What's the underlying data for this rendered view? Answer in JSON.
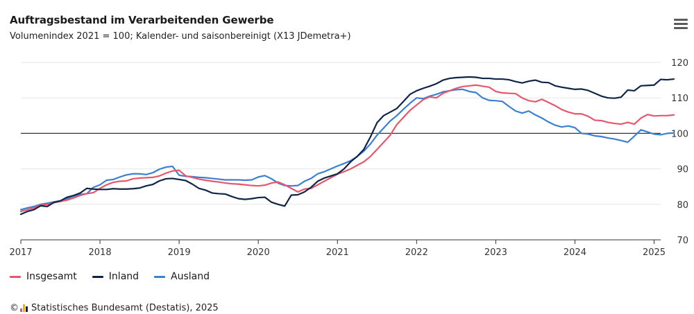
{
  "header": {
    "title": "Auftragsbestand im Verarbeitenden Gewerbe",
    "subtitle": "Volumenindex 2021 = 100; Kalender- und saisonbereinigt (X13 JDemetra+)",
    "menu_icon": "hamburger-menu-icon"
  },
  "legend": [
    {
      "name": "Insgesamt",
      "color": "#e8566c"
    },
    {
      "name": "Inland",
      "color": "#0f2548"
    },
    {
      "name": "Ausland",
      "color": "#3a80d2"
    }
  ],
  "credits": {
    "prefix": "©",
    "logo_icon": "destatis-logo-icon",
    "text": "Statistisches Bundesamt (Destatis), 2025"
  },
  "chart_data": {
    "type": "line",
    "x_start": "2017-01",
    "x_end": "2025-02",
    "x_ticks": [
      "2017",
      "2018",
      "2019",
      "2020",
      "2021",
      "2022",
      "2023",
      "2024",
      "2025"
    ],
    "y_ticks": [
      70,
      80,
      90,
      100,
      110,
      120
    ],
    "ylim": [
      70,
      120
    ],
    "reference_line": 100,
    "y_axis_position": "right",
    "grid": true,
    "legend_position": "bottom-left",
    "series": [
      {
        "name": "Insgesamt",
        "color": "#e8566c",
        "values": [
          78.0,
          78.5,
          79.0,
          79.8,
          80.0,
          80.5,
          80.8,
          81.2,
          81.8,
          82.5,
          83.0,
          83.3,
          84.5,
          85.5,
          86.2,
          86.5,
          86.6,
          87.2,
          87.4,
          87.5,
          87.6,
          88.0,
          88.8,
          89.4,
          89.6,
          88.0,
          87.6,
          87.1,
          86.8,
          86.5,
          86.3,
          86.0,
          85.8,
          85.7,
          85.5,
          85.3,
          85.2,
          85.4,
          86.0,
          86.3,
          85.5,
          84.5,
          83.5,
          84.3,
          84.5,
          85.5,
          86.5,
          87.5,
          88.5,
          89.2,
          90.0,
          91.0,
          92.0,
          93.5,
          95.5,
          97.5,
          99.5,
          102.5,
          104.5,
          106.5,
          108.0,
          109.5,
          110.3,
          110.0,
          111.3,
          112.0,
          112.7,
          113.2,
          113.4,
          113.6,
          113.3,
          113.0,
          111.8,
          111.4,
          111.3,
          111.2,
          110.0,
          109.2,
          108.9,
          109.6,
          108.7,
          107.8,
          106.7,
          106.0,
          105.5,
          105.5,
          104.8,
          103.7,
          103.6,
          103.1,
          102.8,
          102.6,
          103.1,
          102.6,
          104.3,
          105.3,
          104.9,
          105.0,
          105.0,
          105.2
        ]
      },
      {
        "name": "Inland",
        "color": "#0f2548",
        "values": [
          77.2,
          78.0,
          78.5,
          79.6,
          79.4,
          80.5,
          81.0,
          82.0,
          82.5,
          83.2,
          84.5,
          84.3,
          84.2,
          84.2,
          84.4,
          84.3,
          84.3,
          84.4,
          84.6,
          85.2,
          85.6,
          86.6,
          87.2,
          87.3,
          87.0,
          86.7,
          85.7,
          84.5,
          84.0,
          83.2,
          83.0,
          82.9,
          82.2,
          81.6,
          81.4,
          81.6,
          81.9,
          82.0,
          80.6,
          80.0,
          79.5,
          82.6,
          82.7,
          83.5,
          84.8,
          86.5,
          87.4,
          88.0,
          88.6,
          90.0,
          92.0,
          93.5,
          95.5,
          99.0,
          103.0,
          105.0,
          106.0,
          107.0,
          109.0,
          111.0,
          112.0,
          112.7,
          113.3,
          114.0,
          115.0,
          115.5,
          115.7,
          115.8,
          115.9,
          115.8,
          115.5,
          115.5,
          115.3,
          115.3,
          115.1,
          114.6,
          114.2,
          114.7,
          115.0,
          114.4,
          114.3,
          113.4,
          113.0,
          112.7,
          112.4,
          112.5,
          112.1,
          111.3,
          110.5,
          110.0,
          109.9,
          110.2,
          112.2,
          112.0,
          113.4,
          113.5,
          113.6,
          115.2,
          115.1,
          115.3
        ]
      },
      {
        "name": "Ausland",
        "color": "#3a80d2",
        "values": [
          78.5,
          79.0,
          79.4,
          80.0,
          80.3,
          80.7,
          81.0,
          81.6,
          82.3,
          82.8,
          83.0,
          84.8,
          85.5,
          86.8,
          87.0,
          87.7,
          88.3,
          88.6,
          88.6,
          88.4,
          88.9,
          89.9,
          90.5,
          90.7,
          88.2,
          87.9,
          87.8,
          87.6,
          87.5,
          87.3,
          87.1,
          86.9,
          86.9,
          86.9,
          86.8,
          86.9,
          87.7,
          88.1,
          87.2,
          86.0,
          85.3,
          85.2,
          85.3,
          86.5,
          87.3,
          88.6,
          89.2,
          90.0,
          90.8,
          91.5,
          92.3,
          93.5,
          95.0,
          97.0,
          99.5,
          101.5,
          103.5,
          105.0,
          106.8,
          108.5,
          110.0,
          109.8,
          110.5,
          111.0,
          111.7,
          112.0,
          112.3,
          112.4,
          111.8,
          111.5,
          110.0,
          109.3,
          109.2,
          109.0,
          107.6,
          106.3,
          105.7,
          106.3,
          105.2,
          104.3,
          103.2,
          102.3,
          101.8,
          102.1,
          101.6,
          100.0,
          99.8,
          99.3,
          99.1,
          98.7,
          98.4,
          98.0,
          97.5,
          99.2,
          101.0,
          100.4,
          99.8,
          99.6,
          100.0,
          100.1
        ]
      }
    ]
  }
}
